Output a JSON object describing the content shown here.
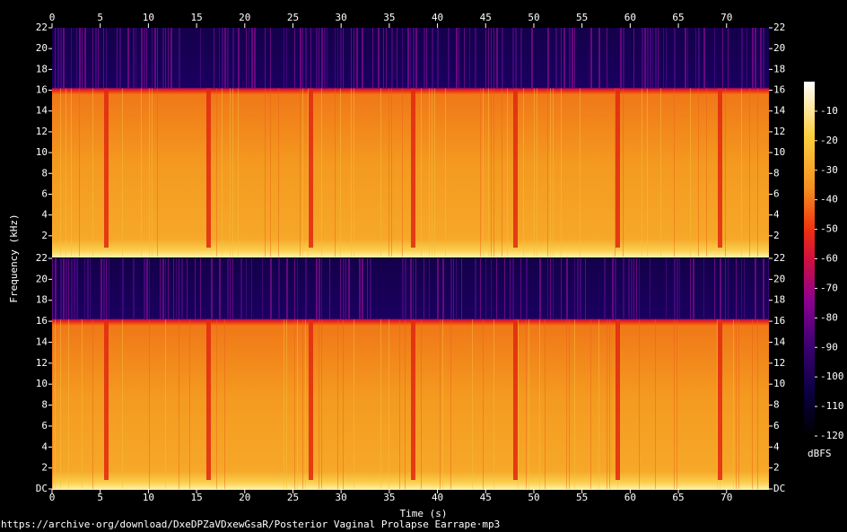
{
  "chart_data": {
    "type": "spectrogram",
    "x_label": "Time (s)",
    "y_label": "Frequency (kHz)",
    "colorbar_label": "dBFS",
    "footer": "https://archive·org/download/DxeDPZaVDxewGsaR/Posterior Vaginal Prolapse Earrape·mp3",
    "xlim": [
      0,
      74.4
    ],
    "xticks": [
      0,
      5,
      10,
      15,
      20,
      25,
      30,
      35,
      40,
      45,
      50,
      55,
      60,
      65,
      70
    ],
    "ylim": [
      0,
      22
    ],
    "yticks": [
      {
        "value": 0,
        "label": "DC"
      },
      2,
      4,
      6,
      8,
      10,
      12,
      14,
      16,
      18,
      20,
      22
    ],
    "clim": [
      -120,
      0
    ],
    "cticks": [
      -10,
      -20,
      -30,
      -40,
      -50,
      -60,
      -70,
      -80,
      -90,
      -100,
      -110,
      -120
    ]
  }
}
